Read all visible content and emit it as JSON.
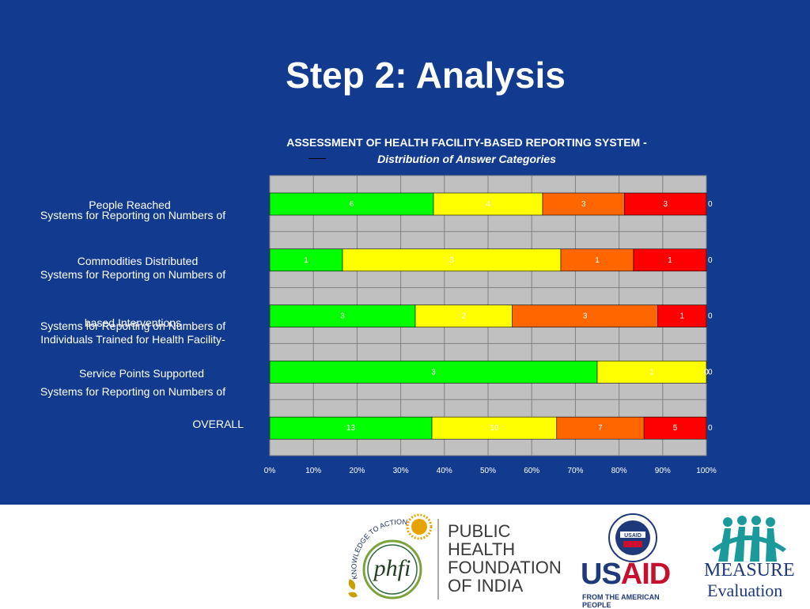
{
  "slide": {
    "title": "Step 2:  Analysis"
  },
  "chart_data": {
    "type": "bar",
    "orientation": "horizontal",
    "stacked": "percent",
    "title": "ASSESSMENT OF HEALTH FACILITY-BASED REPORTING SYSTEM -",
    "subtitle": "Distribution of Answer Categories",
    "categories": [
      [
        "People Reached",
        "Systems for Reporting on Numbers of"
      ],
      [
        "Commodities Distributed",
        "Systems for Reporting on Numbers of"
      ],
      [
        "based Interventions",
        "Systems for Reporting on Numbers of",
        "Individuals Trained for Health Facility-"
      ],
      [
        "Service Points Supported",
        "Systems for Reporting on Numbers of"
      ],
      [
        "OVERALL"
      ]
    ],
    "series": [
      {
        "color": "#00ff00",
        "label_color": "#ffffff",
        "values": [
          6,
          1,
          3,
          3,
          13
        ]
      },
      {
        "color": "#ffff00",
        "label_color": "#ffffff",
        "values": [
          4,
          3,
          2,
          1,
          10
        ]
      },
      {
        "color": "#ff6600",
        "label_color": "#ffffff",
        "values": [
          3,
          1,
          3,
          0,
          7
        ]
      },
      {
        "color": "#ff0000",
        "label_color": "#ffffff",
        "values": [
          3,
          1,
          1,
          0,
          5
        ]
      },
      {
        "color": "#ffffff",
        "label_color": "#ffffff",
        "values": [
          0,
          0,
          0,
          0,
          0
        ]
      }
    ],
    "x_ticks": [
      "0%",
      "10%",
      "20%",
      "30%",
      "40%",
      "50%",
      "60%",
      "70%",
      "80%",
      "90%",
      "100%"
    ],
    "xlim": [
      0,
      100
    ],
    "grid": true,
    "plot_background": "#c0c0c0"
  },
  "footer": {
    "phfi": {
      "tagline": "KNOWLEDGE TO ACTION",
      "mark": "phfi",
      "name_lines": [
        "PUBLIC",
        "HEALTH",
        "FOUNDATION",
        "OF INDIA"
      ]
    },
    "usaid": {
      "seal": "USAID",
      "name": "USAID",
      "tagline": "FROM THE AMERICAN PEOPLE"
    },
    "measure": {
      "name": "MEASURE",
      "sub": "Evaluation"
    }
  }
}
